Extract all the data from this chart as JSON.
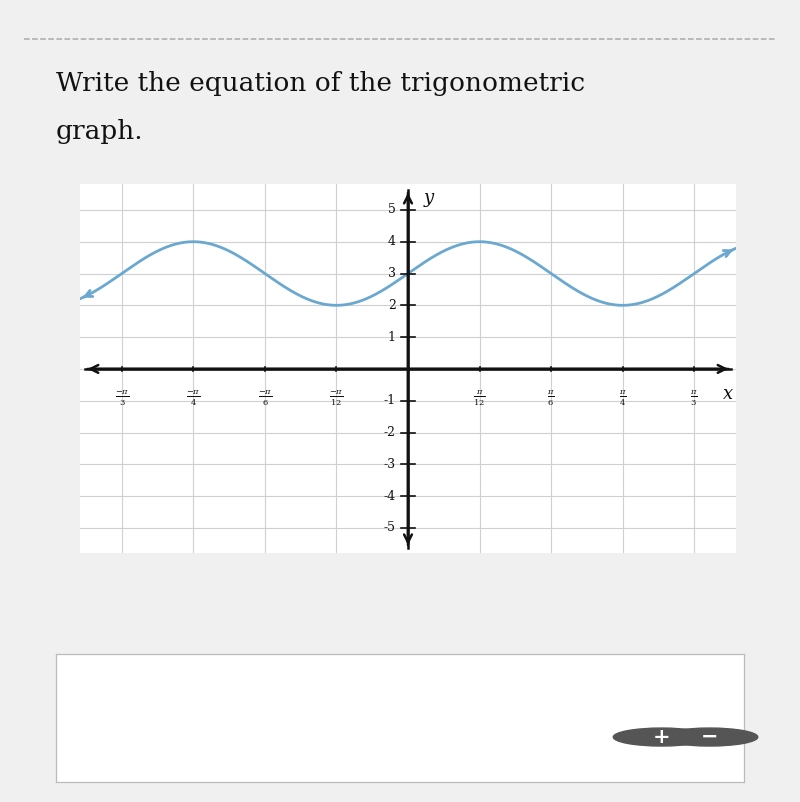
{
  "title_line1": "Write the equation of the trigonometric",
  "title_line2": "graph.",
  "title_fontsize": 19,
  "amplitude": 1,
  "vertical_shift": 3,
  "B": 6,
  "curve_color": "#6aa8d0",
  "curve_linewidth": 2.0,
  "background_color": "#f0f0f0",
  "plot_bg_color": "#ffffff",
  "grid_color": "#d0d0d0",
  "axis_color": "#111111",
  "xlim_data": [
    -1.2,
    1.2
  ],
  "ylim_data": [
    -5.8,
    5.8
  ],
  "xtick_vals": [
    -1.0472,
    -0.7854,
    -0.5236,
    -0.2618,
    0.2618,
    0.5236,
    0.7854,
    1.0472
  ],
  "xtick_nums": [
    "-\\pi",
    "-\\pi",
    "-\\pi",
    "-\\pi",
    "\\pi",
    "\\pi",
    "\\pi",
    "\\pi"
  ],
  "xtick_dens": [
    "3",
    "4",
    "6",
    "12",
    "12",
    "6",
    "4",
    "3"
  ],
  "yticks": [
    -5,
    -4,
    -3,
    -2,
    -1,
    1,
    2,
    3,
    4,
    5
  ],
  "dashed_color": "#aaaaaa",
  "font_family": "DejaVu Serif",
  "fig_width": 8.0,
  "fig_height": 8.02
}
